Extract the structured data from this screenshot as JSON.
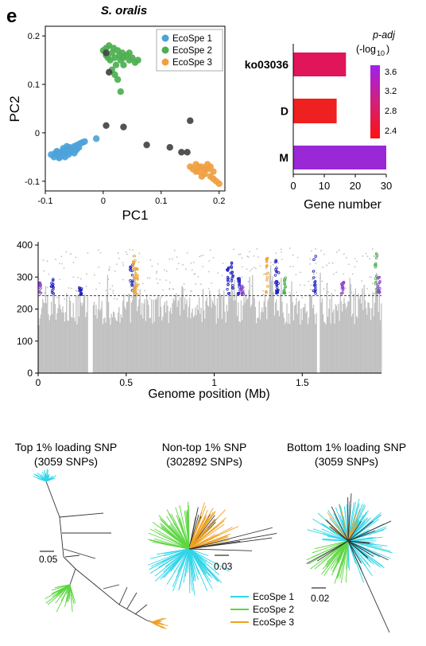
{
  "panel_label": "e",
  "pca": {
    "title": "S. oralis",
    "legend": [
      "EcoSpe 1",
      "EcoSpe 2",
      "EcoSpe 3"
    ]
  },
  "bars": {
    "legend_title_1": "p-adj",
    "legend_title_2": "(-log",
    "legend_title_sub": "10",
    "legend_title_end": ")"
  },
  "manhattan": {},
  "trees": {
    "top": {
      "title_1": "Top 1% loading SNP",
      "title_2": "(3059 SNPs)",
      "scale": "0.05"
    },
    "mid": {
      "title_1": "Non-top 1% SNP",
      "title_2": "(302892 SNPs)",
      "scale": "0.03"
    },
    "bottom": {
      "title_1": "Bottom 1% loading SNP",
      "title_2": "(3059 SNPs)",
      "scale": "0.02"
    },
    "legend": [
      "EcoSpe 1",
      "EcoSpe 2",
      "EcoSpe 3"
    ]
  },
  "colors": {
    "ecospe1": "#4da3d9",
    "ecospe2": "#4caf50",
    "ecospe3": "#f0a040",
    "other": "#444444",
    "tree1": "#30d5e8",
    "tree2": "#5cd640",
    "tree3": "#f0a020",
    "snp_bg": "#c0c0c0",
    "snp_blue": "#2020c0",
    "snp_purple": "#9040d0"
  },
  "chart_data": [
    {
      "type": "scatter",
      "title": "S. oralis",
      "xlabel": "PC1",
      "ylabel": "PC2",
      "xlim": [
        -0.1,
        0.21
      ],
      "ylim": [
        -0.12,
        0.22
      ],
      "xticks": [
        -0.1,
        0,
        0.1,
        0.2
      ],
      "yticks": [
        -0.1,
        0,
        0.1,
        0.2
      ],
      "legend_position": "top-right",
      "series": [
        {
          "name": "EcoSpe 1",
          "color": "#4da3d9",
          "points": [
            [
              -0.09,
              -0.045
            ],
            [
              -0.085,
              -0.05
            ],
            [
              -0.08,
              -0.045
            ],
            [
              -0.078,
              -0.04
            ],
            [
              -0.075,
              -0.05
            ],
            [
              -0.072,
              -0.042
            ],
            [
              -0.07,
              -0.038
            ],
            [
              -0.068,
              -0.047
            ],
            [
              -0.065,
              -0.04
            ],
            [
              -0.062,
              -0.035
            ],
            [
              -0.06,
              -0.045
            ],
            [
              -0.058,
              -0.03
            ],
            [
              -0.055,
              -0.04
            ],
            [
              -0.052,
              -0.032
            ],
            [
              -0.05,
              -0.028
            ],
            [
              -0.047,
              -0.036
            ],
            [
              -0.045,
              -0.025
            ],
            [
              -0.042,
              -0.03
            ],
            [
              -0.04,
              -0.022
            ],
            [
              -0.036,
              -0.02
            ],
            [
              -0.032,
              -0.018
            ],
            [
              -0.08,
              -0.038
            ],
            [
              -0.076,
              -0.052
            ],
            [
              -0.066,
              -0.05
            ],
            [
              -0.058,
              -0.038
            ],
            [
              -0.045,
              -0.033
            ],
            [
              -0.05,
              -0.042
            ],
            [
              -0.063,
              -0.028
            ],
            [
              -0.069,
              -0.032
            ],
            [
              -0.083,
              -0.042
            ],
            [
              -0.012,
              -0.012
            ]
          ]
        },
        {
          "name": "EcoSpe 2",
          "color": "#4caf50",
          "points": [
            [
              0.0,
              0.17
            ],
            [
              0.005,
              0.16
            ],
            [
              0.01,
              0.18
            ],
            [
              0.012,
              0.15
            ],
            [
              0.015,
              0.165
            ],
            [
              0.018,
              0.175
            ],
            [
              0.02,
              0.155
            ],
            [
              0.022,
              0.14
            ],
            [
              0.025,
              0.17
            ],
            [
              0.028,
              0.16
            ],
            [
              0.03,
              0.15
            ],
            [
              0.033,
              0.165
            ],
            [
              0.035,
              0.155
            ],
            [
              0.04,
              0.16
            ],
            [
              0.045,
              0.15
            ],
            [
              0.05,
              0.155
            ],
            [
              0.055,
              0.145
            ],
            [
              0.06,
              0.15
            ],
            [
              0.02,
              0.12
            ],
            [
              0.025,
              0.11
            ],
            [
              0.015,
              0.13
            ],
            [
              0.035,
              0.14
            ],
            [
              0.005,
              0.175
            ],
            [
              0.045,
              0.165
            ],
            [
              0.03,
              0.085
            ],
            [
              0.008,
              0.155
            ]
          ]
        },
        {
          "name": "EcoSpe 3",
          "color": "#f0a040",
          "points": [
            [
              0.15,
              -0.07
            ],
            [
              0.155,
              -0.075
            ],
            [
              0.16,
              -0.065
            ],
            [
              0.165,
              -0.08
            ],
            [
              0.17,
              -0.07
            ],
            [
              0.175,
              -0.085
            ],
            [
              0.18,
              -0.075
            ],
            [
              0.185,
              -0.09
            ],
            [
              0.19,
              -0.08
            ],
            [
              0.195,
              -0.1
            ],
            [
              0.2,
              -0.105
            ],
            [
              0.17,
              -0.09
            ],
            [
              0.16,
              -0.08
            ],
            [
              0.18,
              -0.065
            ],
            [
              0.19,
              -0.095
            ],
            [
              0.185,
              -0.07
            ],
            [
              0.175,
              -0.075
            ],
            [
              0.165,
              -0.07
            ]
          ]
        },
        {
          "name": "",
          "color": "#444444",
          "points": [
            [
              0.005,
              0.165
            ],
            [
              0.01,
              0.125
            ],
            [
              0.005,
              0.015
            ],
            [
              0.035,
              0.012
            ],
            [
              0.075,
              -0.025
            ],
            [
              0.115,
              -0.03
            ],
            [
              0.135,
              -0.04
            ],
            [
              0.15,
              0.025
            ],
            [
              0.145,
              -0.04
            ]
          ]
        }
      ]
    },
    {
      "type": "bar",
      "orientation": "horizontal",
      "categories": [
        "ko03036",
        "D",
        "M"
      ],
      "values": [
        17,
        14,
        30
      ],
      "padj": [
        3.0,
        2.45,
        3.75
      ],
      "colors": [
        "#e0155a",
        "#ee2020",
        "#9a28d6"
      ],
      "xlabel": "Gene number",
      "xlim": [
        0,
        30
      ],
      "xticks": [
        0,
        10,
        20,
        30
      ],
      "colorbar_ticks": [
        3.6,
        3.2,
        2.8,
        2.4
      ]
    },
    {
      "type": "scatter",
      "xlabel": "Genome position (Mb)",
      "xlim": [
        0,
        1.95
      ],
      "xticks": [
        0,
        0.5,
        1,
        1.5
      ],
      "ylim": [
        0,
        410
      ],
      "yticks": [
        0,
        100,
        200,
        300,
        400
      ],
      "threshold": 242,
      "gaps": [
        [
          0.285,
          0.31
        ],
        [
          1.585,
          1.6
        ]
      ],
      "peaks": [
        [
          0.09,
          300
        ],
        [
          0.25,
          270
        ],
        [
          0.55,
          380
        ],
        [
          0.82,
          310
        ],
        [
          1.1,
          360
        ],
        [
          1.2,
          330
        ],
        [
          1.32,
          370
        ],
        [
          1.38,
          320
        ],
        [
          1.6,
          370
        ],
        [
          1.77,
          320
        ],
        [
          1.92,
          370
        ]
      ],
      "highlights": [
        {
          "x": 0.01,
          "color": "#9040d0",
          "ymax": 285
        },
        {
          "x": 0.08,
          "color": "#2020c0",
          "ymax": 295
        },
        {
          "x": 0.24,
          "color": "#2020c0",
          "ymax": 270
        },
        {
          "x": 0.53,
          "color": "#2020c0",
          "ymax": 340
        },
        {
          "x": 0.545,
          "color": "#f0a020",
          "ymax": 378
        },
        {
          "x": 0.56,
          "color": "#f0a020",
          "ymax": 330
        },
        {
          "x": 1.08,
          "color": "#2020c0",
          "ymax": 345
        },
        {
          "x": 1.1,
          "color": "#2020c0",
          "ymax": 355
        },
        {
          "x": 1.14,
          "color": "#2020c0",
          "ymax": 300
        },
        {
          "x": 1.16,
          "color": "#9040d0",
          "ymax": 275
        },
        {
          "x": 1.3,
          "color": "#f0a020",
          "ymax": 372
        },
        {
          "x": 1.35,
          "color": "#2020c0",
          "ymax": 355
        },
        {
          "x": 1.36,
          "color": "#2020c0",
          "ymax": 330
        },
        {
          "x": 1.4,
          "color": "#4caf50",
          "ymax": 300
        },
        {
          "x": 1.57,
          "color": "#2020c0",
          "ymax": 372
        },
        {
          "x": 1.73,
          "color": "#9040d0",
          "ymax": 290
        },
        {
          "x": 1.92,
          "color": "#4caf50",
          "ymax": 380
        },
        {
          "x": 1.935,
          "color": "#9040d0",
          "ymax": 300
        }
      ]
    }
  ]
}
